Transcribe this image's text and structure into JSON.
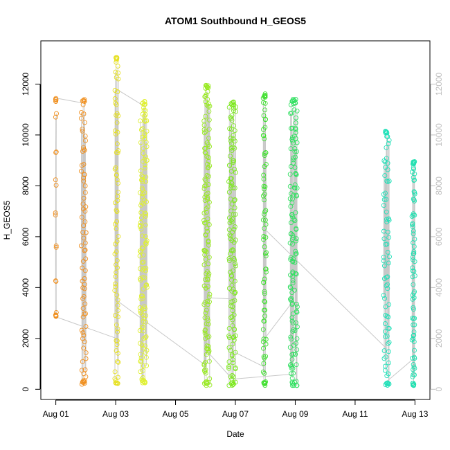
{
  "chart_data": {
    "type": "scatter",
    "title": "ATOM1 Southbound H_GEOS5",
    "xlabel": "Date",
    "ylabel": "H_GEOS5",
    "x_tick_labels": [
      "Aug 01",
      "Aug 03",
      "Aug 05",
      "Aug 07",
      "Aug 09",
      "Aug 11",
      "Aug 13"
    ],
    "x_tick_values": [
      0,
      2,
      4,
      6,
      8,
      10,
      12
    ],
    "y_ticks": [
      0,
      2000,
      4000,
      6000,
      8000,
      10000,
      12000
    ],
    "y_ticks_right": [
      0,
      2000,
      4000,
      6000,
      8000,
      10000,
      12000
    ],
    "xlim": [
      -0.5,
      12.5
    ],
    "ylim": [
      -400,
      13700
    ],
    "right_axis": true,
    "grid": false,
    "legend": "none",
    "colors": {
      "connector_line": "#c8c8c8",
      "axis": "#000000",
      "right_axis": "#bfbfbf",
      "flights": [
        "#f09020",
        "#f09020",
        "#e6e020",
        "#dff030",
        "#98ea20",
        "#7ee820",
        "#40e030",
        "#30e060",
        "#20e0b8",
        "#20e0b0"
      ]
    },
    "flights": [
      {
        "x": 0.0,
        "spread": 0.02,
        "min": 2850,
        "max": 11450,
        "density": "low"
      },
      {
        "x": 0.93,
        "spread": 0.08,
        "min": 200,
        "max": 11400,
        "density": "med"
      },
      {
        "x": 2.03,
        "spread": 0.06,
        "min": 230,
        "max": 13080,
        "density": "med"
      },
      {
        "x": 2.93,
        "spread": 0.12,
        "min": 250,
        "max": 11320,
        "density": "high"
      },
      {
        "x": 5.05,
        "spread": 0.1,
        "min": 150,
        "max": 11950,
        "density": "high"
      },
      {
        "x": 5.9,
        "spread": 0.12,
        "min": 150,
        "max": 11300,
        "density": "high"
      },
      {
        "x": 6.98,
        "spread": 0.05,
        "min": 150,
        "max": 11620,
        "density": "med"
      },
      {
        "x": 7.95,
        "spread": 0.12,
        "min": 150,
        "max": 11400,
        "density": "high"
      },
      {
        "x": 11.05,
        "spread": 0.1,
        "min": 150,
        "max": 10200,
        "density": "med"
      },
      {
        "x": 11.95,
        "spread": 0.05,
        "min": 150,
        "max": 8950,
        "density": "med"
      }
    ],
    "connectors": [
      [
        [
          0.0,
          11450
        ],
        [
          0.93,
          11250
        ]
      ],
      [
        [
          0.0,
          2850
        ],
        [
          2.03,
          2000
        ]
      ],
      [
        [
          2.03,
          11800
        ],
        [
          2.93,
          11150
        ]
      ],
      [
        [
          2.03,
          3500
        ],
        [
          5.05,
          900
        ]
      ],
      [
        [
          5.05,
          3600
        ],
        [
          5.9,
          3550
        ]
      ],
      [
        [
          5.05,
          1500
        ],
        [
          5.9,
          400
        ]
      ],
      [
        [
          5.9,
          1500
        ],
        [
          6.98,
          870
        ]
      ],
      [
        [
          5.9,
          400
        ],
        [
          7.95,
          600
        ]
      ],
      [
        [
          6.98,
          2000
        ],
        [
          7.95,
          3500
        ]
      ],
      [
        [
          6.98,
          6300
        ],
        [
          11.05,
          1600
        ]
      ],
      [
        [
          11.05,
          300
        ],
        [
          11.95,
          1200
        ]
      ]
    ]
  }
}
